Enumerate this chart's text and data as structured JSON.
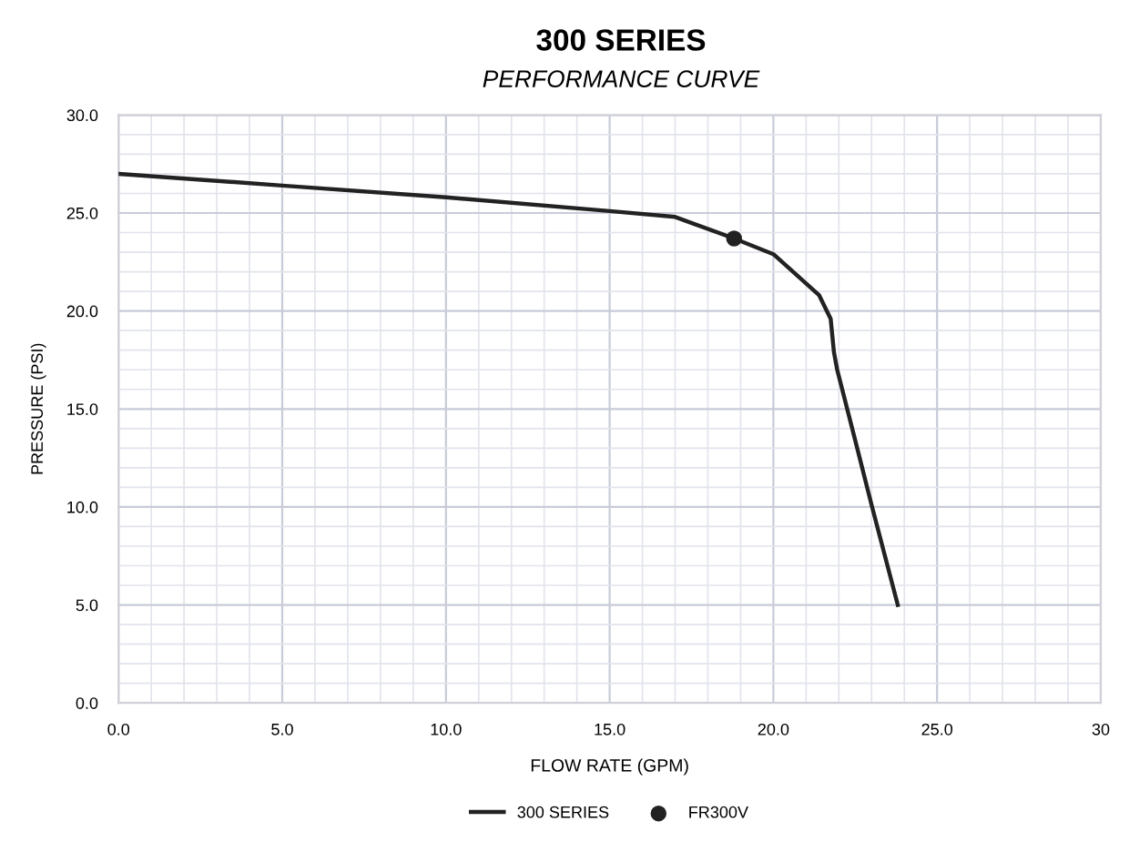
{
  "chart_data": {
    "type": "line",
    "title": "300 SERIES",
    "subtitle": "PERFORMANCE CURVE",
    "xlabel": "FLOW RATE (GPM)",
    "ylabel": "PRESSURE (PSI)",
    "series": [
      {
        "name": "300 SERIES",
        "color": "#222222",
        "marker": "none",
        "line_style": "solid",
        "x": [
          0,
          5,
          10,
          15,
          17,
          18.8,
          20.0,
          21.4,
          21.75,
          21.85,
          21.95,
          22.5,
          23.0,
          23.8
        ],
        "values": [
          27.0,
          26.4,
          25.8,
          25.1,
          24.8,
          23.7,
          22.9,
          20.8,
          19.6,
          17.9,
          17.0,
          13.4,
          10.1,
          5.0
        ]
      },
      {
        "name": "FR300V",
        "type": "scatter",
        "color": "#222222",
        "marker": "circle",
        "x": [
          18.8
        ],
        "values": [
          23.7
        ]
      }
    ],
    "xlim": [
      0,
      30
    ],
    "ylim": [
      0,
      30
    ],
    "xticks": [
      {
        "value": 0,
        "label": "0.0"
      },
      {
        "value": 5,
        "label": "5.0"
      },
      {
        "value": 10,
        "label": "10.0"
      },
      {
        "value": 15,
        "label": "15.0"
      },
      {
        "value": 20,
        "label": "20.0"
      },
      {
        "value": 25,
        "label": "25.0"
      },
      30
    ],
    "yticks": [
      {
        "value": 0,
        "label": "0.0"
      },
      {
        "value": 5,
        "label": "5.0"
      },
      {
        "value": 10,
        "label": "10.0"
      },
      {
        "value": 15,
        "label": "15.0"
      },
      {
        "value": 20,
        "label": "20.0"
      },
      {
        "value": 25,
        "label": "25.0"
      },
      {
        "value": 30,
        "label": "30.0"
      }
    ],
    "grid": true,
    "legend": "bottom"
  }
}
